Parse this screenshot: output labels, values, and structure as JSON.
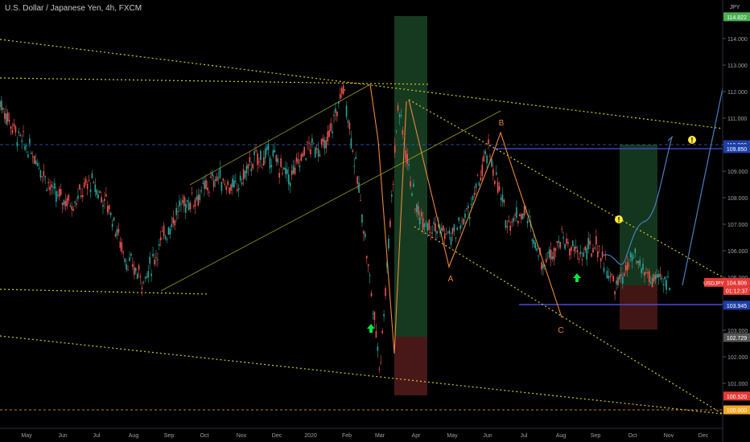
{
  "header": {
    "symbol_title": "U.S. Dollar / Japanese Yen, 4h, FXCM",
    "currency": "JPY"
  },
  "chart_data": {
    "type": "line",
    "title": "U.S. Dollar / Japanese Yen, 4h, FXCM",
    "ylim": [
      99.75,
      115.0
    ],
    "y_ticks": [
      101.0,
      102.0,
      103.0,
      104.0,
      105.0,
      106.0,
      107.0,
      108.0,
      109.0,
      110.0,
      111.0,
      112.0,
      113.0,
      114.0
    ],
    "x_ticks": [
      "May",
      "Jun",
      "Jul",
      "Aug",
      "Sep",
      "Oct",
      "Nov",
      "Dec",
      "2020",
      "Feb",
      "Mar",
      "Apr",
      "May",
      "Jun",
      "Jul",
      "Aug",
      "Sep",
      "Oct",
      "Nov",
      "Dec"
    ],
    "price_series": [
      [
        "Apr 2019",
        111.6
      ],
      [
        "May 2019",
        110.3
      ],
      [
        "May 2019",
        109.5
      ],
      [
        "Jun 2019",
        108.1
      ],
      [
        "Jun 2019",
        107.8
      ],
      [
        "Jul 2019",
        108.6
      ],
      [
        "Jul 2019",
        107.7
      ],
      [
        "Aug 2019",
        105.6
      ],
      [
        "Aug 2019",
        104.9
      ],
      [
        "Sep 2019",
        106.5
      ],
      [
        "Oct 2019",
        107.7
      ],
      [
        "Oct 2019",
        108.1
      ],
      [
        "Nov 2019",
        108.8
      ],
      [
        "Nov 2019",
        108.3
      ],
      [
        "Dec 2019",
        109.4
      ],
      [
        "Dec 2019",
        109.6
      ],
      [
        "Jan 2020",
        108.7
      ],
      [
        "Jan 2020",
        109.9
      ],
      [
        "Feb 2020",
        109.9
      ],
      [
        "Feb 2020",
        112.2
      ],
      [
        "Mar 2020",
        107.5
      ],
      [
        "Mar 2020",
        101.6
      ],
      [
        "Mar 2020",
        111.5
      ],
      [
        "Apr 2020",
        107.5
      ],
      [
        "Apr 2020",
        106.9
      ],
      [
        "May 2020",
        106.5
      ],
      [
        "May 2020",
        107.6
      ],
      [
        "Jun 2020",
        109.8
      ],
      [
        "Jun 2020",
        107.1
      ],
      [
        "Jul 2020",
        107.5
      ],
      [
        "Jul 2020",
        105.5
      ],
      [
        "Aug 2020",
        106.5
      ],
      [
        "Aug 2020",
        105.8
      ],
      [
        "Sep 2020",
        106.2
      ],
      [
        "Sep 2020",
        104.6
      ],
      [
        "Oct 2020",
        105.7
      ],
      [
        "Oct 2020",
        104.9
      ],
      [
        "Nov 2020",
        104.8
      ]
    ],
    "price_labels": [
      {
        "text": "114.822",
        "value": 114.822,
        "color": "#4caf50"
      },
      {
        "text": "110.000",
        "value": 110.0,
        "color": "#1e3fa8"
      },
      {
        "text": "109.850",
        "value": 109.85,
        "color": "#1e3fa8"
      },
      {
        "text": "104.806",
        "value": 104.806,
        "color": "#e53935",
        "prefix": "USDJPY"
      },
      {
        "text": "01:12:37",
        "value": 104.5,
        "color": "#e53935"
      },
      {
        "text": "103.945",
        "value": 103.945,
        "color": "#1e3fa8"
      },
      {
        "text": "102.729",
        "value": 102.729,
        "color": "#555555"
      },
      {
        "text": "100.520",
        "value": 100.52,
        "color": "#e53935"
      },
      {
        "text": "100.000",
        "value": 100.0,
        "color": "#f9a825"
      }
    ],
    "wave_labels": [
      {
        "text": "A",
        "color": "#e8883a"
      },
      {
        "text": "B",
        "color": "#e8883a"
      },
      {
        "text": "C",
        "color": "#e8883a"
      }
    ],
    "colors": {
      "candle_up": "#26a69a",
      "candle_down": "#ef5350",
      "trend": "#d4c81f",
      "wave": "#e8883a",
      "forecast": "#4a7fc1",
      "hline": "#3a3ad0",
      "accent": "#ffeb3b"
    }
  }
}
